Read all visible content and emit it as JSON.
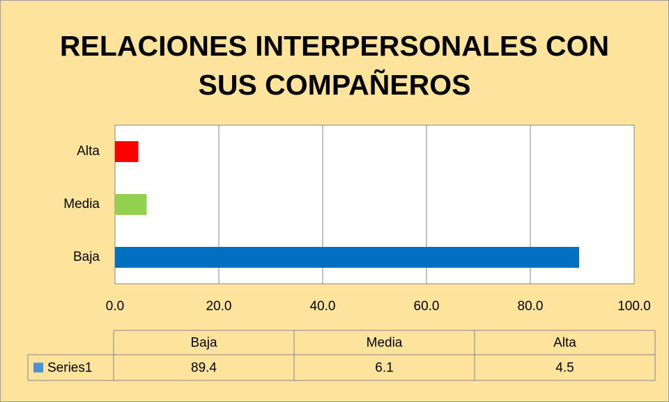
{
  "chart_data": {
    "type": "bar",
    "orientation": "horizontal",
    "title": "RELACIONES INTERPERSONALES CON SUS COMPAÑEROS",
    "categories": [
      "Baja",
      "Media",
      "Alta"
    ],
    "series": [
      {
        "name": "Series1",
        "color": "#4f8fd6",
        "values": [
          89.4,
          6.1,
          4.5
        ],
        "colors": [
          "#0070c0",
          "#92d050",
          "#ff0000"
        ]
      }
    ],
    "xlim": [
      0,
      100
    ],
    "xticks": [
      {
        "value": 0,
        "label": "0.0"
      },
      {
        "value": 20,
        "label": "20.0"
      },
      {
        "value": 40,
        "label": "40.0"
      },
      {
        "value": 60,
        "label": "60.0"
      },
      {
        "value": 80,
        "label": "80.0"
      },
      {
        "value": 100,
        "label": "100.0"
      }
    ],
    "grid": true,
    "data_table": true
  }
}
